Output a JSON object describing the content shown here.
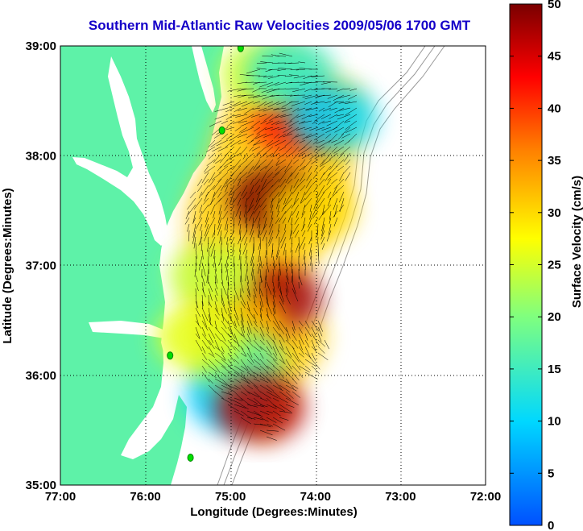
{
  "title": "Southern Mid-Atlantic Raw Velocities 2009/05/06 1700 GMT",
  "map": {
    "xlabel": "Longitude (Degrees:Minutes)",
    "ylabel": "Latitude (Degrees:Minutes)",
    "x_ticks": [
      "77:00",
      "76:00",
      "75:00",
      "74:00",
      "73:00",
      "72:00"
    ],
    "y_ticks": [
      "39:00",
      "38:00",
      "37:00",
      "36:00",
      "35:00"
    ],
    "lon_range": [
      -77,
      -72
    ],
    "lat_range": [
      35,
      39
    ],
    "grid": "dotted",
    "land_color": "#5ef2a8",
    "water_color": "#ffffff"
  },
  "colorbar": {
    "label": "Surface Velocity (cm/s)",
    "ticks": [
      "0",
      "5",
      "10",
      "15",
      "20",
      "25",
      "30",
      "35",
      "40",
      "45",
      "50"
    ],
    "range": [
      0,
      50
    ],
    "colormap": "jet"
  },
  "chart_data": {
    "type": "heatmap",
    "title": "Southern Mid-Atlantic Raw Velocities 2009/05/06 1700 GMT",
    "xlabel": "Longitude (Degrees:Minutes)",
    "ylabel": "Latitude (Degrees:Minutes)",
    "xlim": [
      -77,
      -72
    ],
    "ylim": [
      35,
      39
    ],
    "colorbar_label": "Surface Velocity (cm/s)",
    "clim": [
      0,
      50
    ],
    "stations": [
      {
        "lon": -74.88,
        "lat": 38.98
      },
      {
        "lon": -75.1,
        "lat": 38.23
      },
      {
        "lon": -75.71,
        "lat": 36.18
      },
      {
        "lon": -75.47,
        "lat": 35.25
      }
    ],
    "velocity_regions": [
      {
        "lon": -74.5,
        "lat": 37.6,
        "speed": 50
      },
      {
        "lon": -74.25,
        "lat": 38.3,
        "speed": 42
      },
      {
        "lon": -74.45,
        "lat": 36.7,
        "speed": 48
      },
      {
        "lon": -74.85,
        "lat": 36.45,
        "speed": 32
      },
      {
        "lon": -75.2,
        "lat": 36.9,
        "speed": 24
      },
      {
        "lon": -74.6,
        "lat": 38.75,
        "speed": 25
      },
      {
        "lon": -74.3,
        "lat": 38.75,
        "speed": 14
      },
      {
        "lon": -73.8,
        "lat": 38.35,
        "speed": 10
      },
      {
        "lon": -75.0,
        "lat": 35.8,
        "speed": 9
      },
      {
        "lon": -74.9,
        "lat": 36.1,
        "speed": 17
      },
      {
        "lon": -74.65,
        "lat": 35.7,
        "speed": 47
      },
      {
        "lon": -75.35,
        "lat": 36.35,
        "speed": 26
      },
      {
        "lon": -74.05,
        "lat": 37.5,
        "speed": 30
      }
    ]
  }
}
